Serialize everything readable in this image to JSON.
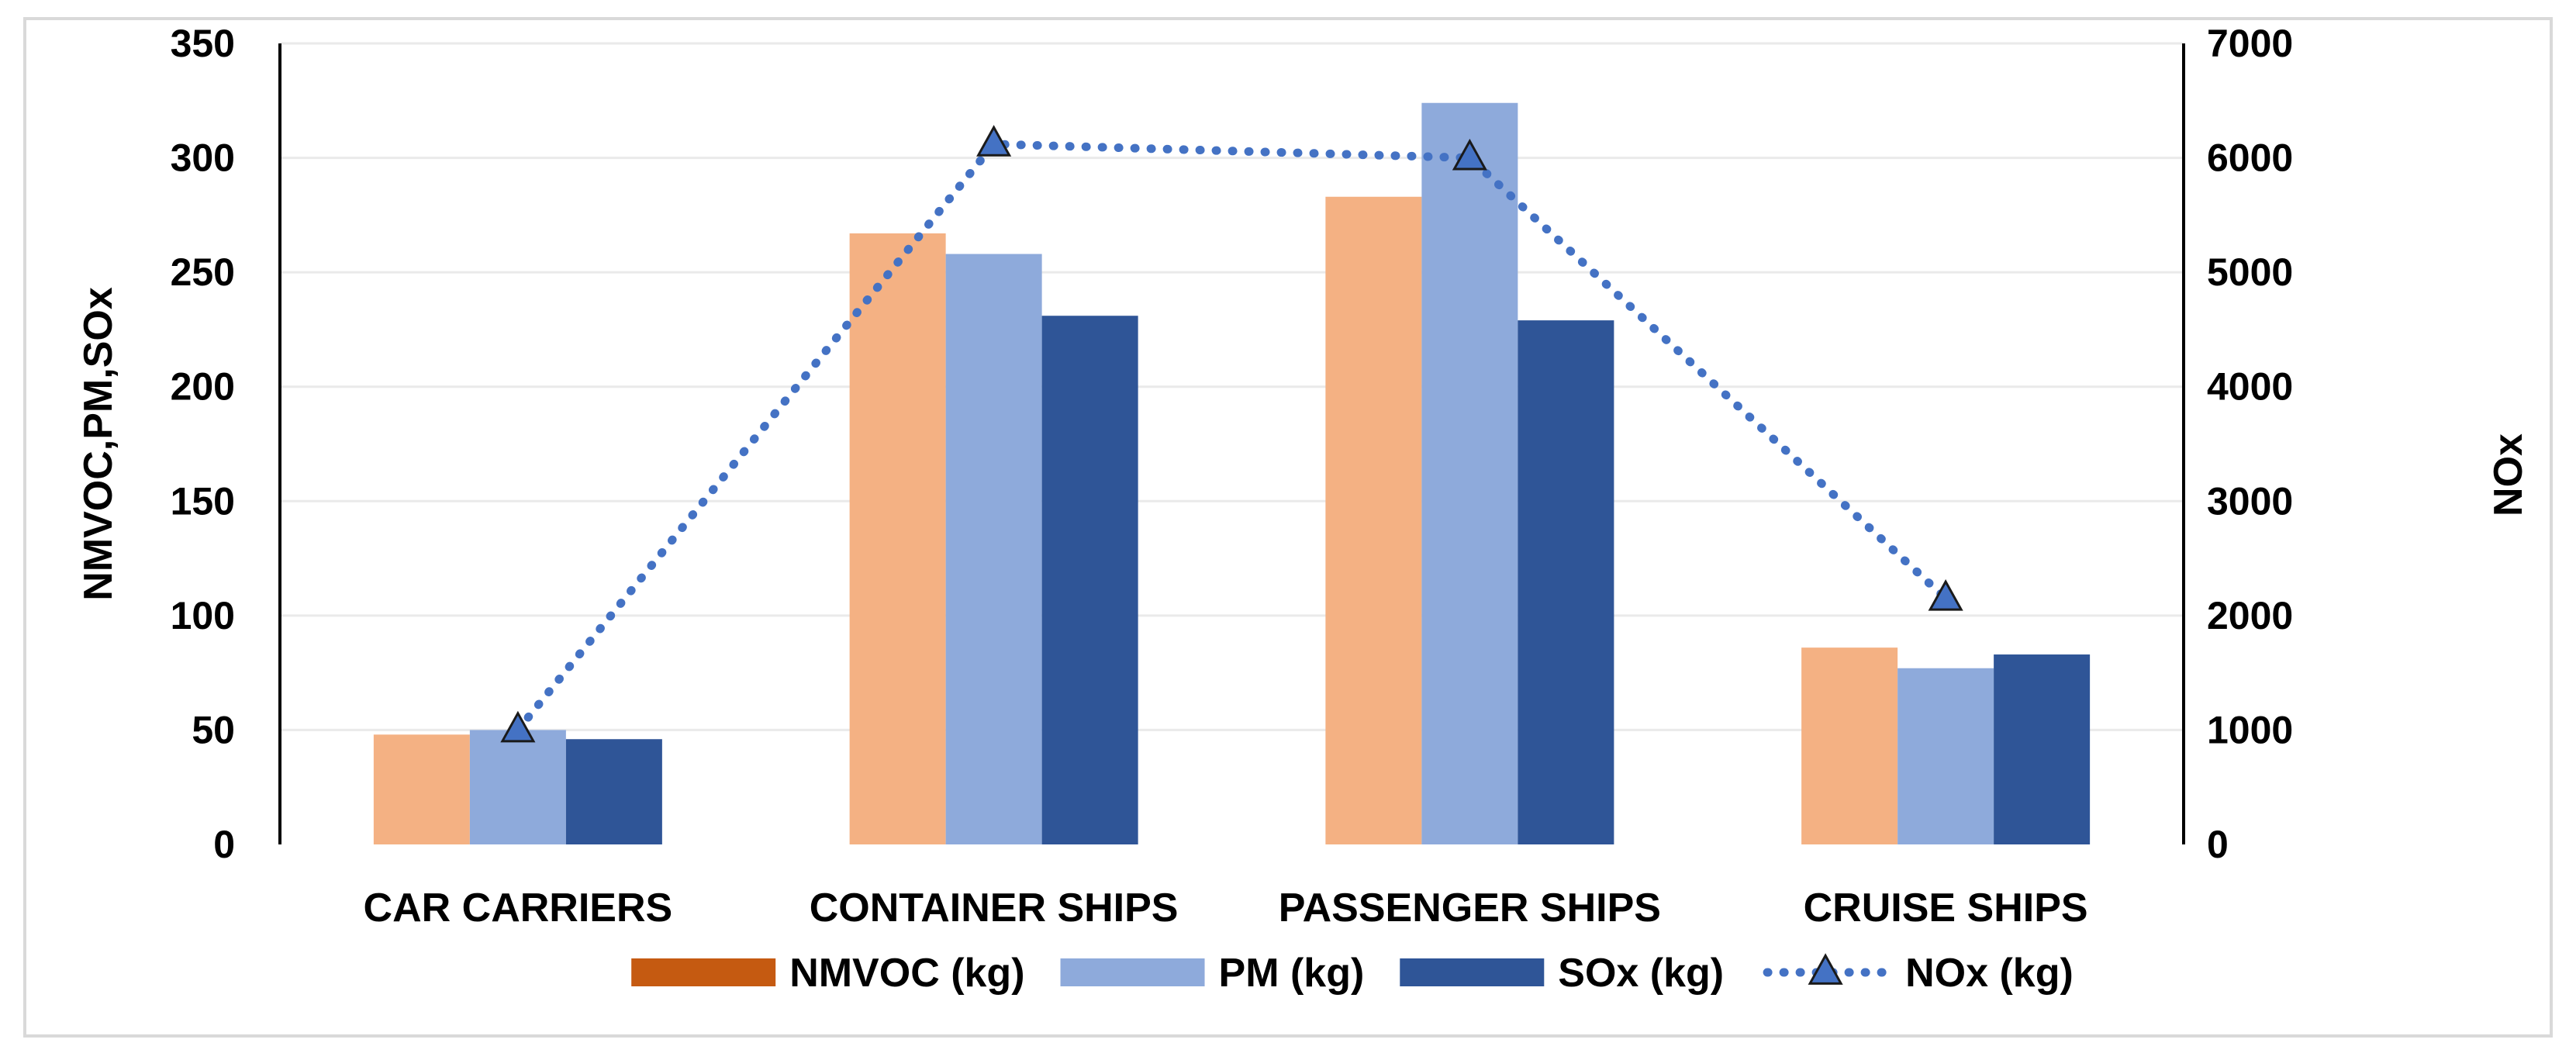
{
  "chart_data": {
    "type": "bar",
    "categories": [
      "CAR CARRIERS",
      "CONTAINER SHIPS",
      "PASSENGER SHIPS",
      "CRUISE SHIPS"
    ],
    "series": [
      {
        "name": "NMVOC (kg)",
        "axis": "left",
        "kind": "bar",
        "color": "#f4b183",
        "legend_color": "#c55a11",
        "values": [
          48,
          267,
          283,
          86
        ]
      },
      {
        "name": "PM (kg)",
        "axis": "left",
        "kind": "bar",
        "color": "#8eaadb",
        "legend_color": "#8eaadb",
        "values": [
          50,
          258,
          324,
          77
        ]
      },
      {
        "name": "SOx (kg)",
        "axis": "left",
        "kind": "bar",
        "color": "#2f5597",
        "legend_color": "#2f5597",
        "values": [
          46,
          231,
          229,
          83
        ]
      },
      {
        "name": "NOx (kg)",
        "axis": "right",
        "kind": "line",
        "style": "dotted",
        "marker": "triangle",
        "color": "#4472c4",
        "values": [
          1000,
          6120,
          6000,
          2150
        ]
      }
    ],
    "ylabel": "NMVOC,PM,SOx",
    "ylabel_right": "NOx",
    "ylim": [
      0,
      350
    ],
    "yticks": [
      0,
      50,
      100,
      150,
      200,
      250,
      300,
      350
    ],
    "ylim_right": [
      0,
      7000
    ],
    "yticks_right": [
      0,
      1000,
      2000,
      3000,
      4000,
      5000,
      6000,
      7000
    ],
    "grid": true,
    "legend_position": "bottom"
  }
}
